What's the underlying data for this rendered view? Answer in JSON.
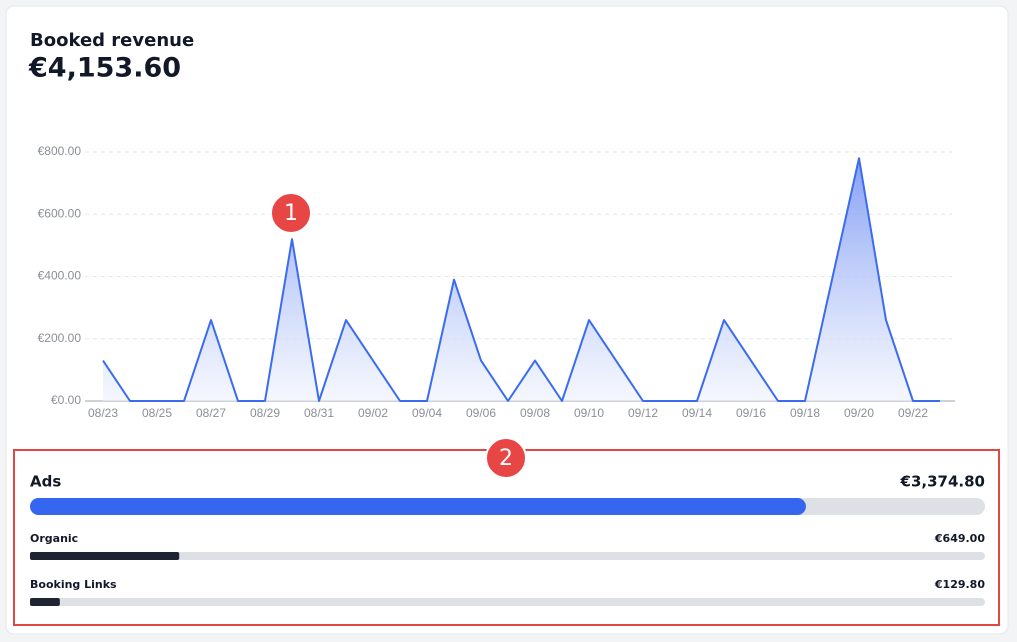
{
  "header": {
    "title": "Booked revenue",
    "total": {
      "value": 4153.6,
      "label": "€4,153.60"
    }
  },
  "chart_data": {
    "type": "area",
    "categories": [
      "08/23",
      null,
      "08/25",
      null,
      "08/27",
      null,
      "08/29",
      null,
      "08/31",
      null,
      "09/02",
      null,
      "09/04",
      null,
      "09/06",
      null,
      "09/08",
      null,
      "09/10",
      null,
      "09/12",
      null,
      "09/14",
      null,
      "09/16",
      null,
      "09/18",
      null,
      "09/20",
      null,
      "09/22",
      null
    ],
    "values": [
      130,
      0,
      0,
      0,
      260,
      0,
      0,
      520,
      0,
      260,
      130,
      0,
      0,
      390,
      130,
      0,
      130,
      0,
      260,
      130,
      0,
      0,
      0,
      260,
      130,
      0,
      0,
      390,
      780,
      260,
      0,
      0
    ],
    "color": "#3b6cf0",
    "ylim": [
      0,
      800
    ],
    "yticks": [
      {
        "value": 0,
        "label": "€0.00"
      },
      {
        "value": 200,
        "label": "€200.00"
      },
      {
        "value": 400,
        "label": "€400.00"
      },
      {
        "value": 600,
        "label": "€600.00"
      },
      {
        "value": 800,
        "label": "€800.00"
      }
    ],
    "grid": true
  },
  "breakdown": [
    {
      "name": "Ads",
      "value": 3374.8,
      "value_label": "€3,374.80",
      "color": "#3566f0"
    },
    {
      "name": "Organic",
      "value": 649,
      "value_label": "€649.00",
      "color": "#1f2433"
    },
    {
      "name": "Booking Links",
      "value": 129.8,
      "value_label": "€129.80",
      "color": "#1f2433"
    }
  ],
  "annotations": [
    "1",
    "2"
  ]
}
